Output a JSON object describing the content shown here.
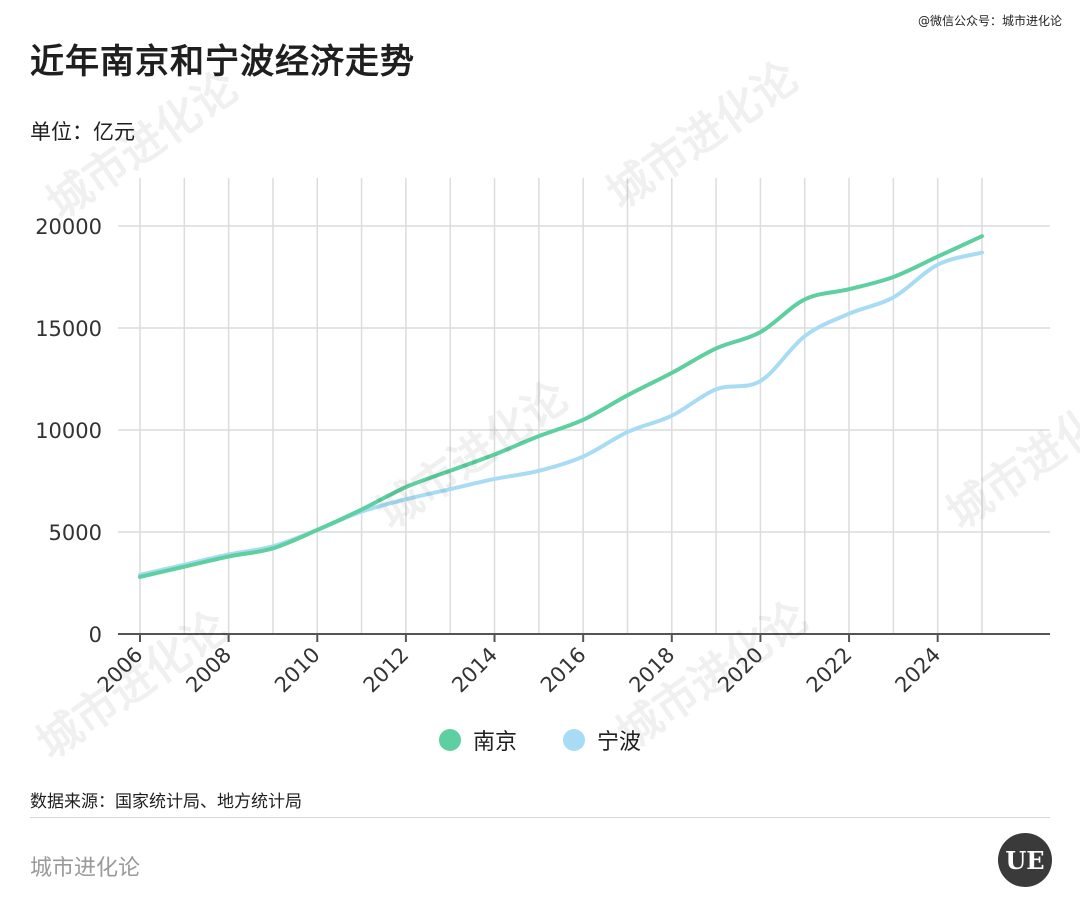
{
  "header": {
    "wechat": "@微信公众号：城市进化论",
    "title": "近年南京和宁波经济走势",
    "unit": "单位：亿元"
  },
  "source": "数据来源：国家统计局、地方统计局",
  "footer": {
    "brand": "城市进化论",
    "logo_text": "UE"
  },
  "watermark": "城市进化论",
  "colors": {
    "nanjing": "#5ecfa0",
    "ningbo": "#a8dcf4",
    "grid": "#dcdcdc",
    "axis": "#555555"
  },
  "chart_data": {
    "type": "line",
    "title": "近年南京和宁波经济走势",
    "ylabel": "单位：亿元",
    "xlabel": "",
    "x": [
      2006,
      2007,
      2008,
      2009,
      2010,
      2011,
      2012,
      2013,
      2014,
      2015,
      2016,
      2017,
      2018,
      2019,
      2020,
      2021,
      2022,
      2023,
      2024,
      2025
    ],
    "xticks": [
      "2006",
      "2008",
      "2010",
      "2012",
      "2014",
      "2016",
      "2018",
      "2020",
      "2022",
      "2024"
    ],
    "yticks": [
      "0",
      "5000",
      "10000",
      "15000",
      "20000"
    ],
    "xlim": [
      2006,
      2025
    ],
    "ylim": [
      0,
      20000
    ],
    "grid": true,
    "legend": "bottom-center",
    "series": [
      {
        "name": "南京",
        "color": "#5ecfa0",
        "values": [
          2800,
          3300,
          3800,
          4200,
          5100,
          6100,
          7200,
          8000,
          8800,
          9700,
          10500,
          11700,
          12800,
          14000,
          14800,
          16400,
          16900,
          17500,
          18500,
          19500
        ]
      },
      {
        "name": "宁波",
        "color": "#a8dcf4",
        "values": [
          2900,
          3400,
          3900,
          4300,
          5100,
          6000,
          6600,
          7100,
          7600,
          8000,
          8700,
          9900,
          10700,
          12000,
          12400,
          14600,
          15700,
          16500,
          18100,
          18700
        ]
      }
    ]
  }
}
